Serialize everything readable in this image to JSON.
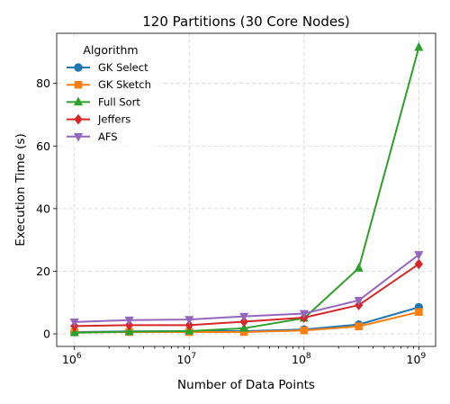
{
  "chart_data": {
    "type": "line",
    "title": "120 Partitions (30 Core Nodes)",
    "xlabel": "Number of Data Points",
    "ylabel": "Execution Time (s)",
    "xscale": "log",
    "xlim": [
      700000,
      1400000000
    ],
    "ylim": [
      -4,
      96
    ],
    "xticks": [
      {
        "value": 1000000,
        "base": "10",
        "exp": "6"
      },
      {
        "value": 10000000,
        "base": "10",
        "exp": "7"
      },
      {
        "value": 100000000,
        "base": "10",
        "exp": "8"
      },
      {
        "value": 1000000000,
        "base": "10",
        "exp": "9"
      }
    ],
    "yticks": [
      0,
      20,
      40,
      60,
      80
    ],
    "grid": true,
    "legend": {
      "title": "Algorithm",
      "position": "top-left"
    },
    "x": [
      1000000,
      3000000,
      10000000,
      30000000,
      100000000,
      300000000,
      1000000000
    ],
    "series": [
      {
        "name": "GK Select",
        "color": "#1f77b4",
        "marker": "circle",
        "values": [
          0.6,
          0.8,
          0.9,
          0.9,
          1.4,
          3.0,
          8.5
        ]
      },
      {
        "name": "GK Sketch",
        "color": "#ff7f0e",
        "marker": "square",
        "values": [
          0.5,
          0.6,
          0.6,
          0.6,
          1.1,
          2.4,
          7.0
        ]
      },
      {
        "name": "Full Sort",
        "color": "#2ca02c",
        "marker": "triangle-up",
        "values": [
          0.4,
          0.7,
          0.9,
          1.8,
          5.0,
          21.0,
          91.5
        ]
      },
      {
        "name": "Jeffers",
        "color": "#d62728",
        "marker": "diamond",
        "values": [
          2.5,
          2.8,
          2.8,
          3.9,
          5.2,
          9.2,
          22.3
        ]
      },
      {
        "name": "AFS",
        "color": "#9467bd",
        "marker": "triangle-down",
        "values": [
          3.8,
          4.4,
          4.6,
          5.6,
          6.5,
          10.7,
          25.3
        ]
      }
    ]
  }
}
